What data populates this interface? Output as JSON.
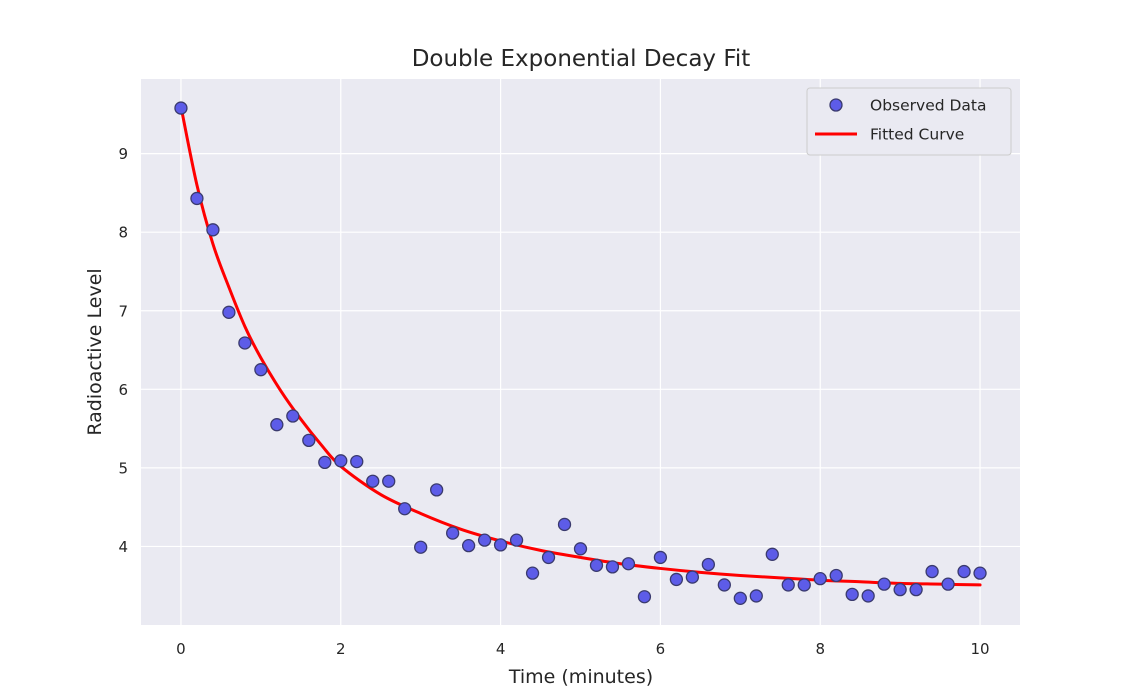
{
  "chart_data": {
    "type": "scatter",
    "title": "Double Exponential Decay Fit",
    "xlabel": "Time (minutes)",
    "ylabel": "Radioactive Level",
    "xlim": [
      -0.5,
      10.5
    ],
    "ylim": [
      3.0,
      9.95
    ],
    "xticks": [
      0,
      2,
      4,
      6,
      8,
      10
    ],
    "yticks": [
      4,
      5,
      6,
      7,
      8,
      9
    ],
    "grid": true,
    "legend_position": "top-right",
    "background": "#eaeaf2",
    "series": [
      {
        "name": "Observed Data",
        "kind": "scatter",
        "color": "#5d5ce8",
        "edge_color": "#3a3a6e",
        "x": [
          0.0,
          0.2,
          0.4,
          0.6,
          0.8,
          1.0,
          1.2,
          1.4,
          1.6,
          1.8,
          2.0,
          2.2,
          2.4,
          2.6,
          2.8,
          3.0,
          3.2,
          3.4,
          3.6,
          3.8,
          4.0,
          4.2,
          4.4,
          4.6,
          4.8,
          5.0,
          5.2,
          5.4,
          5.6,
          5.8,
          6.0,
          6.2,
          6.4,
          6.6,
          6.8,
          7.0,
          7.2,
          7.4,
          7.6,
          7.8,
          8.0,
          8.2,
          8.4,
          8.6,
          8.8,
          9.0,
          9.2,
          9.4,
          9.6,
          9.8,
          10.0
        ],
        "y": [
          9.58,
          8.43,
          8.03,
          6.98,
          6.59,
          6.25,
          5.55,
          5.66,
          5.35,
          5.07,
          5.09,
          5.08,
          4.83,
          4.83,
          4.48,
          3.99,
          4.72,
          4.17,
          4.01,
          4.08,
          4.02,
          4.08,
          3.66,
          3.86,
          4.28,
          3.97,
          3.76,
          3.74,
          3.78,
          3.36,
          3.86,
          3.58,
          3.61,
          3.77,
          3.51,
          3.34,
          3.37,
          3.9,
          3.51,
          3.51,
          3.59,
          3.63,
          3.39,
          3.37,
          3.52,
          3.45,
          3.45,
          3.68,
          3.52,
          3.68,
          3.66
        ]
      },
      {
        "name": "Fitted Curve",
        "kind": "line",
        "color": "#ff0000",
        "x": [
          0,
          0.2,
          0.4,
          0.6,
          0.8,
          1.0,
          1.25,
          1.5,
          1.75,
          2.0,
          2.5,
          3.0,
          3.5,
          4.0,
          4.5,
          5.0,
          5.5,
          6.0,
          6.5,
          7.0,
          7.5,
          8.0,
          8.5,
          9.0,
          9.5,
          10.0
        ],
        "y": [
          9.6,
          8.6,
          7.85,
          7.3,
          6.8,
          6.4,
          5.98,
          5.62,
          5.3,
          5.02,
          4.66,
          4.42,
          4.22,
          4.07,
          3.95,
          3.86,
          3.78,
          3.72,
          3.67,
          3.63,
          3.6,
          3.57,
          3.55,
          3.53,
          3.52,
          3.51
        ]
      }
    ]
  }
}
